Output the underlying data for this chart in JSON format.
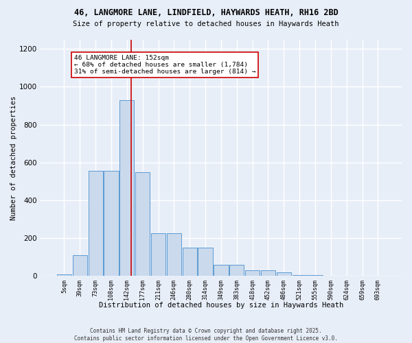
{
  "title_line1": "46, LANGMORE LANE, LINDFIELD, HAYWARDS HEATH, RH16 2BD",
  "title_line2": "Size of property relative to detached houses in Haywards Heath",
  "xlabel": "Distribution of detached houses by size in Haywards Heath",
  "ylabel": "Number of detached properties",
  "categories": [
    "5sqm",
    "39sqm",
    "73sqm",
    "108sqm",
    "142sqm",
    "177sqm",
    "211sqm",
    "246sqm",
    "280sqm",
    "314sqm",
    "349sqm",
    "383sqm",
    "418sqm",
    "452sqm",
    "486sqm",
    "521sqm",
    "555sqm",
    "590sqm",
    "624sqm",
    "659sqm",
    "693sqm"
  ],
  "values": [
    8,
    110,
    555,
    555,
    930,
    550,
    225,
    225,
    150,
    150,
    60,
    58,
    32,
    32,
    18,
    5,
    5,
    3,
    2,
    1,
    2
  ],
  "bar_color": "#cad9ec",
  "bar_edge_color": "#5b9bd5",
  "annotation_text_line1": "46 LANGMORE LANE: 152sqm",
  "annotation_text_line2": "← 68% of detached houses are smaller (1,784)",
  "annotation_text_line3": "31% of semi-detached houses are larger (814) →",
  "vline_color": "#cc0000",
  "annotation_box_facecolor": "#ffffff",
  "annotation_box_edgecolor": "#cc0000",
  "background_color": "#e8eef8",
  "grid_color": "#ffffff",
  "footer_line1": "Contains HM Land Registry data © Crown copyright and database right 2025.",
  "footer_line2": "Contains public sector information licensed under the Open Government Licence v3.0.",
  "ylim_max": 1250,
  "yticks": [
    0,
    200,
    400,
    600,
    800,
    1000,
    1200
  ],
  "vline_pos": 4.286
}
